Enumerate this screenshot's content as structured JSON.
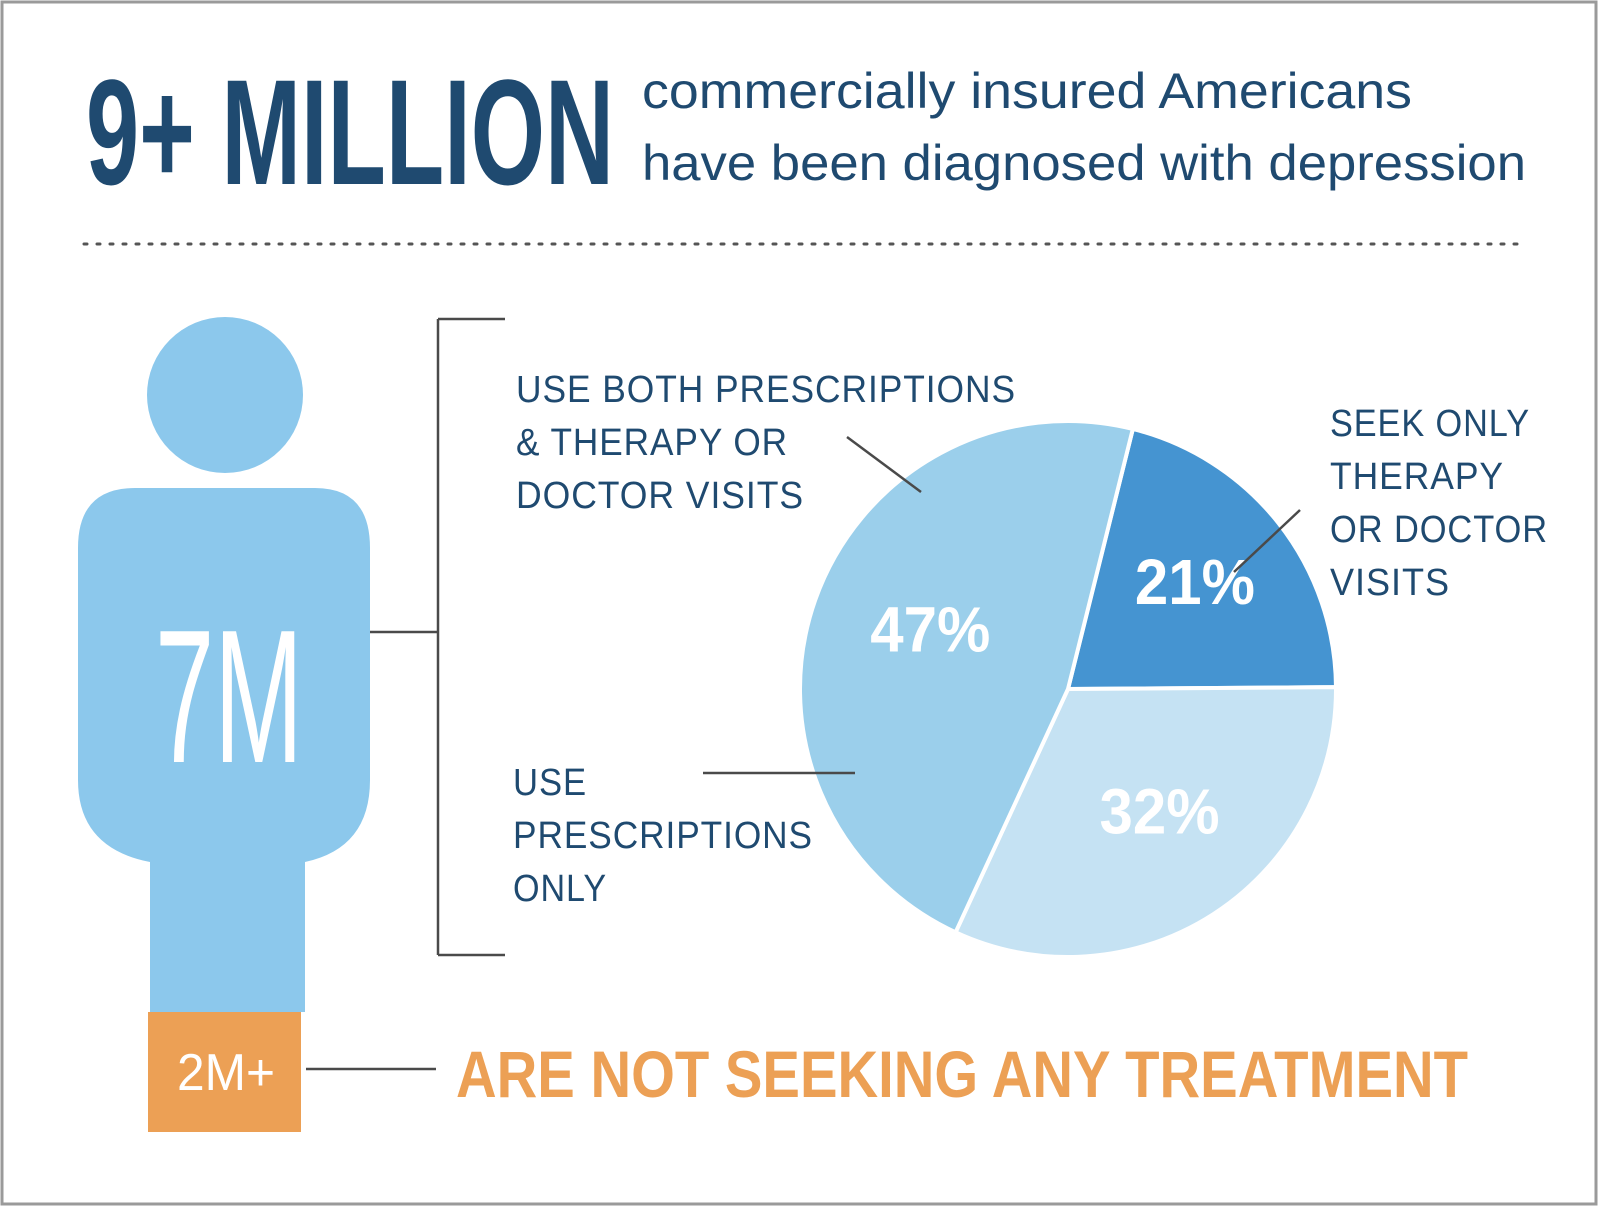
{
  "headline": {
    "big": "9+ MILLION",
    "line1": "commercially insured Americans",
    "line2": "have been diagnosed with depression"
  },
  "figure": {
    "upper_value": "7M",
    "lower_value": "2M+",
    "lower_caption": "ARE NOT SEEKING ANY TREATMENT"
  },
  "colors": {
    "navy": "#1f4a70",
    "figure_blue": "#8cc8ec",
    "orange": "#eca055",
    "slice_dark": "#4594d1",
    "slice_light": "#c5e2f3",
    "slice_mid": "#9bcfeb"
  },
  "chart_data": {
    "type": "pie",
    "slices": [
      {
        "label": "21%",
        "value": 21,
        "lines": [
          "USE BOTH PRESCRIPTIONS",
          "& THERAPY OR",
          "DOCTOR VISITS"
        ],
        "color": "#4594d1"
      },
      {
        "label": "32%",
        "value": 32,
        "lines": [
          "SEEK ONLY",
          "THERAPY",
          "OR DOCTOR",
          "VISITS"
        ],
        "color": "#c5e2f3"
      },
      {
        "label": "47%",
        "value": 47,
        "lines": [
          "USE",
          "PRESCRIPTIONS",
          "ONLY"
        ],
        "color": "#9bcfeb"
      }
    ]
  }
}
